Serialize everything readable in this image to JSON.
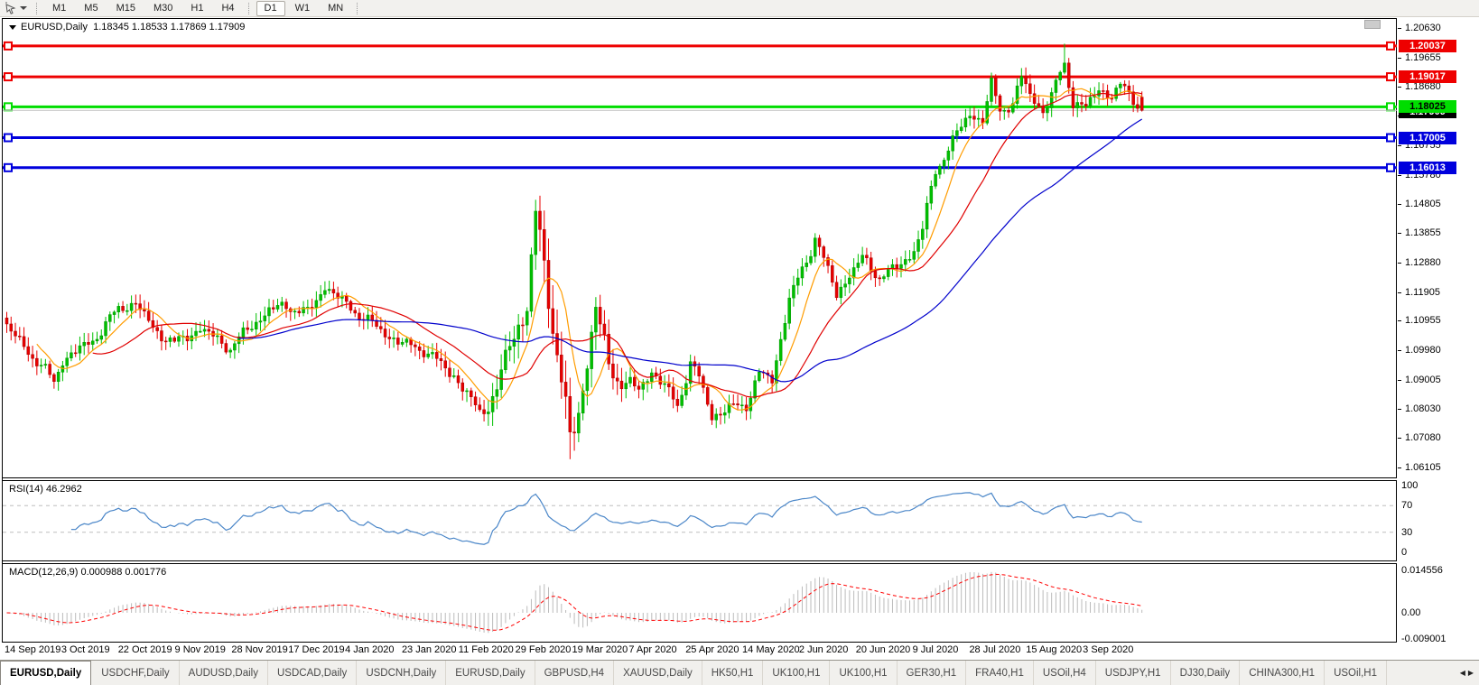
{
  "toolbar": {
    "cursor_tool": "cursor-tool",
    "timeframes": [
      "M1",
      "M5",
      "M15",
      "M30",
      "H1",
      "H4",
      "D1",
      "W1",
      "MN"
    ],
    "active_timeframe": "D1"
  },
  "main_pane": {
    "title": "EURUSD,Daily",
    "ohlc": "1.18345 1.18533 1.17869 1.17909"
  },
  "chart_data": {
    "type": "candlestick",
    "symbol": "EURUSD",
    "timeframe": "Daily",
    "current_bar": {
      "open": 1.18345,
      "high": 1.18533,
      "low": 1.17869,
      "close": 1.17909
    },
    "bars_count": 265,
    "ylim": [
      1.0581,
      1.2093
    ],
    "x_labels": [
      "14 Sep 2019",
      "3 Oct 2019",
      "22 Oct 2019",
      "9 Nov 2019",
      "28 Nov 2019",
      "17 Dec 2019",
      "4 Jan 2020",
      "23 Jan 2020",
      "11 Feb 2020",
      "29 Feb 2020",
      "19 Mar 2020",
      "7 Apr 2020",
      "25 Apr 2020",
      "14 May 2020",
      "2 Jun 2020",
      "20 Jun 2020",
      "9 Jul 2020",
      "28 Jul 2020",
      "15 Aug 2020",
      "3 Sep 2020"
    ],
    "y_ticks": [
      "1.20630",
      "1.19655",
      "1.18680",
      "1.17730",
      "1.16755",
      "1.15780",
      "1.14805",
      "1.13855",
      "1.12880",
      "1.11905",
      "1.10955",
      "1.09980",
      "1.09005",
      "1.08030",
      "1.07080",
      "1.06105"
    ],
    "price_path_anchors": [
      [
        0,
        1.1075
      ],
      [
        5,
        1.0995
      ],
      [
        11,
        1.0895
      ],
      [
        13,
        1.0965
      ],
      [
        20,
        1.103
      ],
      [
        26,
        1.1135
      ],
      [
        30,
        1.1155
      ],
      [
        34,
        1.107
      ],
      [
        39,
        1.102
      ],
      [
        45,
        1.107
      ],
      [
        52,
        1.1005
      ],
      [
        57,
        1.108
      ],
      [
        61,
        1.113
      ],
      [
        65,
        1.1145
      ],
      [
        70,
        1.112
      ],
      [
        74,
        1.121
      ],
      [
        78,
        1.116
      ],
      [
        84,
        1.1095
      ],
      [
        91,
        1.1025
      ],
      [
        97,
        1.1
      ],
      [
        104,
        1.0915
      ],
      [
        110,
        1.079
      ],
      [
        114,
        1.086
      ],
      [
        117,
        1.1025
      ],
      [
        121,
        1.1135
      ],
      [
        123,
        1.145
      ],
      [
        126,
        1.1185
      ],
      [
        131,
        1.07
      ],
      [
        133,
        1.079
      ],
      [
        137,
        1.114
      ],
      [
        140,
        1.095
      ],
      [
        143,
        1.089
      ],
      [
        147,
        1.087
      ],
      [
        150,
        1.093
      ],
      [
        153,
        1.0875
      ],
      [
        156,
        1.082
      ],
      [
        159,
        1.095
      ],
      [
        161,
        1.091
      ],
      [
        164,
        1.078
      ],
      [
        169,
        1.081
      ],
      [
        172,
        1.082
      ],
      [
        175,
        1.092
      ],
      [
        178,
        1.09
      ],
      [
        182,
        1.117
      ],
      [
        186,
        1.129
      ],
      [
        188,
        1.1375
      ],
      [
        190,
        1.13
      ],
      [
        193,
        1.118
      ],
      [
        196,
        1.125
      ],
      [
        199,
        1.13
      ],
      [
        203,
        1.124
      ],
      [
        208,
        1.128
      ],
      [
        211,
        1.133
      ],
      [
        213,
        1.14
      ],
      [
        216,
        1.159
      ],
      [
        221,
        1.1715
      ],
      [
        224,
        1.1778
      ],
      [
        227,
        1.176
      ],
      [
        229,
        1.1875
      ],
      [
        231,
        1.179
      ],
      [
        234,
        1.1815
      ],
      [
        236,
        1.19
      ],
      [
        238,
        1.184
      ],
      [
        241,
        1.179
      ],
      [
        243,
        1.184
      ],
      [
        245,
        1.191
      ],
      [
        246,
        1.194
      ],
      [
        248,
        1.182
      ],
      [
        251,
        1.18
      ],
      [
        254,
        1.186
      ],
      [
        257,
        1.184
      ],
      [
        259,
        1.187
      ],
      [
        262,
        1.183
      ],
      [
        264,
        1.17909
      ]
    ],
    "spike_highs": [
      [
        123,
        1.1495
      ],
      [
        246,
        1.2011
      ]
    ],
    "spike_lows": [
      [
        131,
        1.0638
      ]
    ],
    "horizontal_lines": [
      {
        "label": "1.20037",
        "value": 1.20037,
        "color": "#ee0000",
        "text_color": "#ffffff"
      },
      {
        "label": "1.19017",
        "value": 1.19017,
        "color": "#ee0000",
        "text_color": "#ffffff"
      },
      {
        "label": "1.18025",
        "value": 1.18025,
        "color": "#00dd00",
        "text_color": "#000000"
      },
      {
        "label": "1.17005",
        "value": 1.17005,
        "color": "#0000dd",
        "text_color": "#ffffff"
      },
      {
        "label": "1.16013",
        "value": 1.16013,
        "color": "#0000dd",
        "text_color": "#ffffff"
      }
    ],
    "current_price": {
      "label": "1.17909",
      "value": 1.17909,
      "line_color": "#c0c0c0",
      "label_bg": "#000000",
      "text_color": "#ffffff"
    },
    "moving_averages": [
      {
        "name": "MA-fast",
        "period": 8,
        "color": "#ff9c00"
      },
      {
        "name": "MA-mid",
        "period": 21,
        "color": "#e00000"
      },
      {
        "name": "MA-slow",
        "period": 55,
        "color": "#0000cc"
      }
    ],
    "candle_up": {
      "fill": "#00c000",
      "stroke": "#009300"
    },
    "candle_down": {
      "fill": "#e80000",
      "stroke": "#a50000"
    },
    "rsi": {
      "label": "RSI(14) 46.2962",
      "period": 14,
      "value": 46.2962,
      "color": "#4a86c8",
      "levels": [
        70,
        30
      ],
      "level_color": "#bdbdbd",
      "ticks": [
        {
          "label": "100",
          "value": 100
        },
        {
          "label": "70",
          "value": 70
        },
        {
          "label": "30",
          "value": 30
        },
        {
          "label": "0",
          "value": 0
        }
      ]
    },
    "macd": {
      "label": "MACD(12,26,9) 0.000988 0.001776",
      "fast": 12,
      "slow": 26,
      "signal": 9,
      "macd_value": 0.000988,
      "signal_value": 0.001776,
      "histogram_color": "#bbbbbb",
      "signal_color": "#ff0000",
      "ticks": [
        {
          "label": "0.014556",
          "value": 0.014556
        },
        {
          "label": "0.00",
          "value": 0
        },
        {
          "label": "-0.009001",
          "value": -0.009001
        }
      ]
    }
  },
  "tabs": {
    "items": [
      {
        "label": "EURUSD,Daily",
        "active": true
      },
      {
        "label": "USDCHF,Daily",
        "active": false
      },
      {
        "label": "AUDUSD,Daily",
        "active": false
      },
      {
        "label": "USDCAD,Daily",
        "active": false
      },
      {
        "label": "USDCNH,Daily",
        "active": false
      },
      {
        "label": "EURUSD,Daily",
        "active": false
      },
      {
        "label": "GBPUSD,H4",
        "active": false
      },
      {
        "label": "XAUUSD,Daily",
        "active": false
      },
      {
        "label": "HK50,H1",
        "active": false
      },
      {
        "label": "UK100,H1",
        "active": false
      },
      {
        "label": "UK100,H1",
        "active": false
      },
      {
        "label": "GER30,H1",
        "active": false
      },
      {
        "label": "FRA40,H1",
        "active": false
      },
      {
        "label": "USOil,H4",
        "active": false
      },
      {
        "label": "USDJPY,H1",
        "active": false
      },
      {
        "label": "DJ30,Daily",
        "active": false
      },
      {
        "label": "CHINA300,H1",
        "active": false
      },
      {
        "label": "USOil,H1",
        "active": false
      }
    ],
    "scroll_left": "◀",
    "scroll_right": "▶"
  }
}
